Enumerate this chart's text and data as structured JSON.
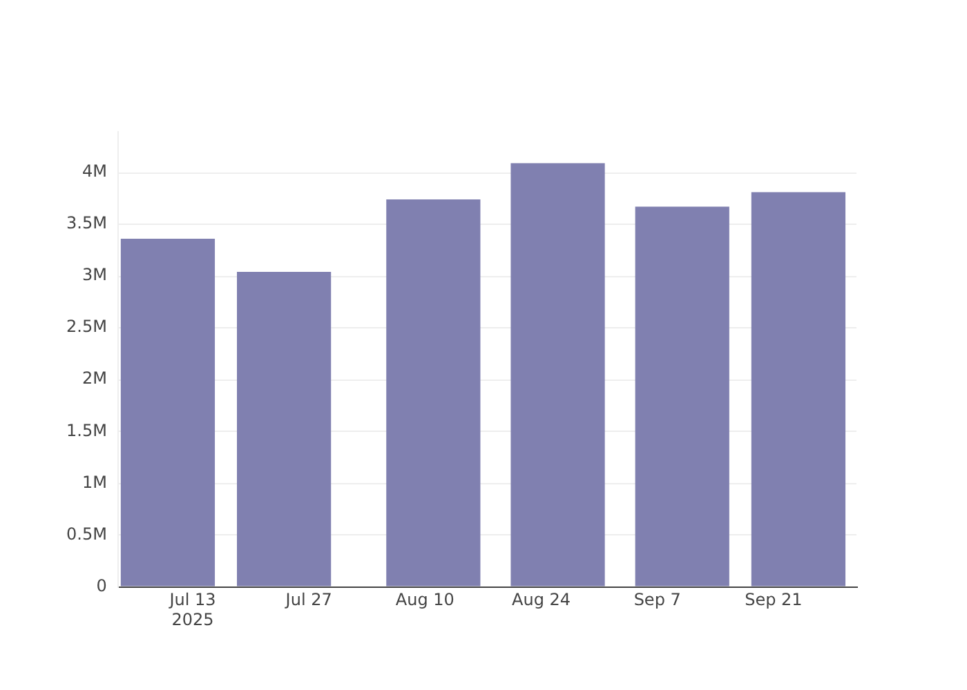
{
  "chart_data": {
    "type": "bar",
    "x": [
      "2025-07-10",
      "2025-07-24",
      "2025-08-11",
      "2025-08-26",
      "2025-09-10",
      "2025-09-24"
    ],
    "values": [
      3360000,
      3040000,
      3740000,
      4090000,
      3670000,
      3810000
    ],
    "color": "#8080b0",
    "xlim": [
      "2025-07-04",
      "2025-10-01"
    ],
    "xticks": [
      {
        "value": "2025-07-13",
        "label": "Jul 13\n2025"
      },
      {
        "value": "2025-07-27",
        "label": "Jul 27"
      },
      {
        "value": "2025-08-10",
        "label": "Aug 10"
      },
      {
        "value": "2025-08-24",
        "label": "Aug 24"
      },
      {
        "value": "2025-09-07",
        "label": "Sep 7"
      },
      {
        "value": "2025-09-21",
        "label": "Sep 21"
      }
    ],
    "ylim": [
      0,
      4400000
    ],
    "yticks": [
      {
        "value": 0,
        "label": "0"
      },
      {
        "value": 500000,
        "label": "0.5M"
      },
      {
        "value": 1000000,
        "label": "1M"
      },
      {
        "value": 1500000,
        "label": "1.5M"
      },
      {
        "value": 2000000,
        "label": "2M"
      },
      {
        "value": 2500000,
        "label": "2.5M"
      },
      {
        "value": 3000000,
        "label": "3M"
      },
      {
        "value": 3500000,
        "label": "3.5M"
      },
      {
        "value": 4000000,
        "label": "4M"
      }
    ],
    "grid": "y"
  }
}
